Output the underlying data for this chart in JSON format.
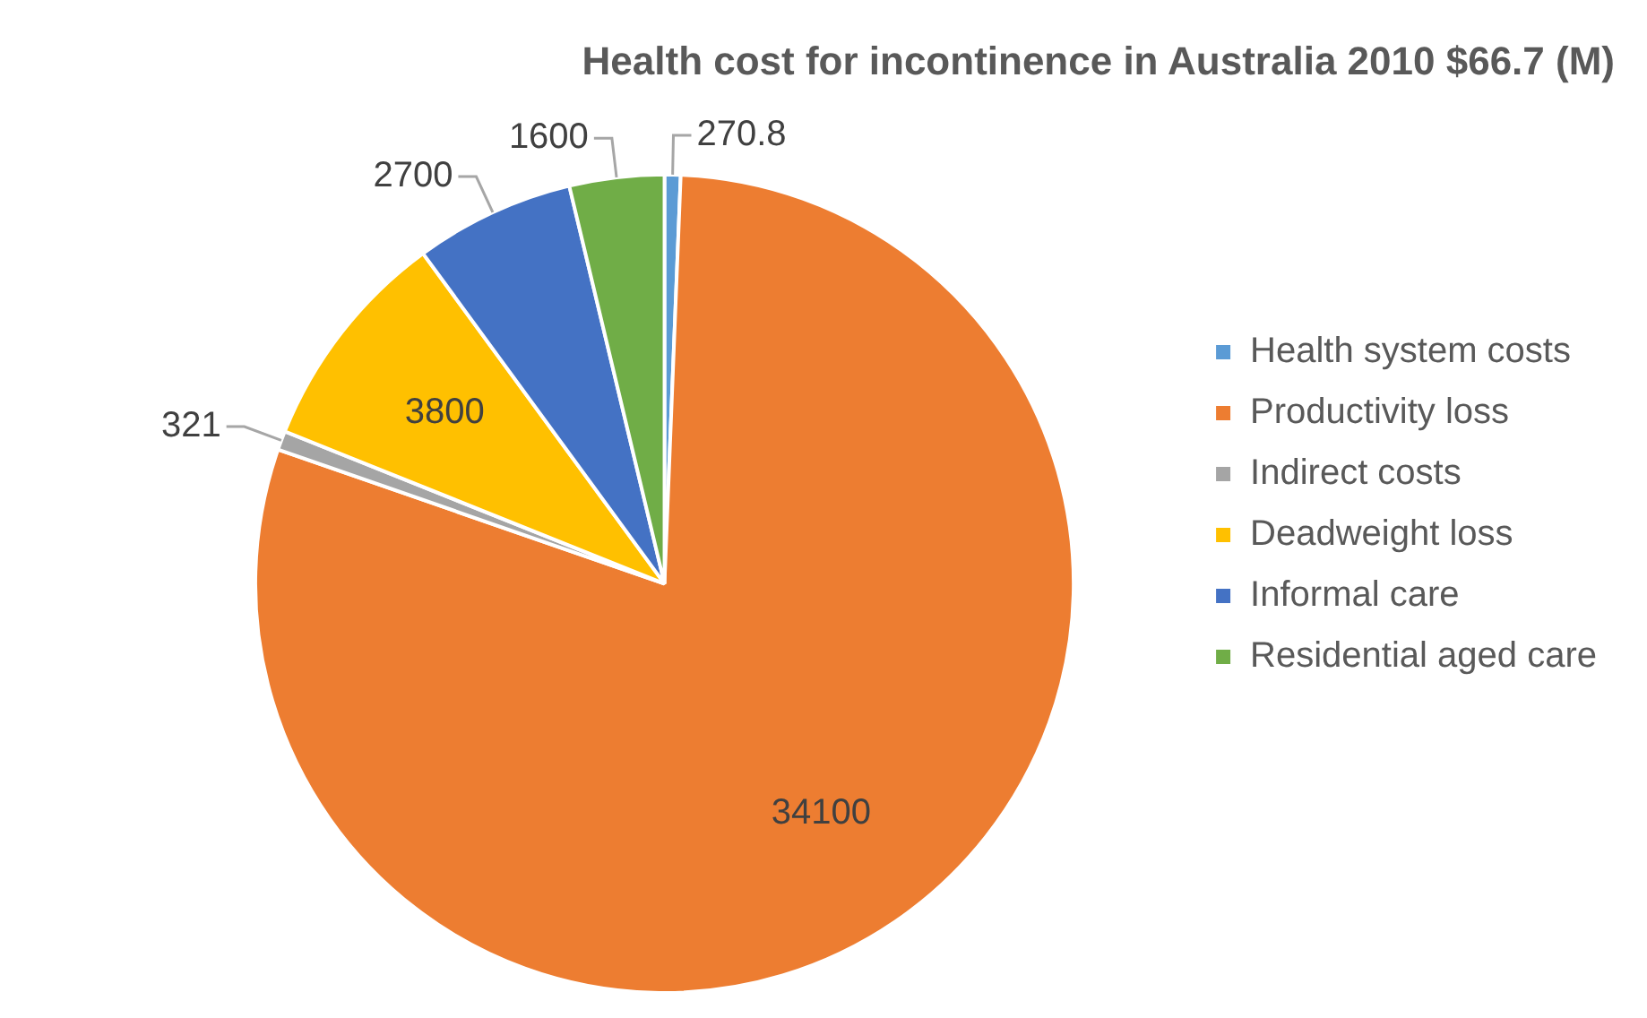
{
  "chart_data": {
    "type": "pie",
    "title": "Health cost for incontinence in Australia 2010 $66.7 (M)",
    "categories": [
      "Health system costs",
      "Productivity loss",
      "Indirect costs",
      "Deadweight loss",
      "Informal care",
      "Residential aged care"
    ],
    "values": [
      270.8,
      34100,
      321,
      3800,
      2700,
      1600
    ],
    "colors": [
      "#5b9bd5",
      "#ed7d31",
      "#a5a5a5",
      "#ffc000",
      "#4472c4",
      "#70ad47"
    ],
    "data_labels": true,
    "legend": "right"
  }
}
